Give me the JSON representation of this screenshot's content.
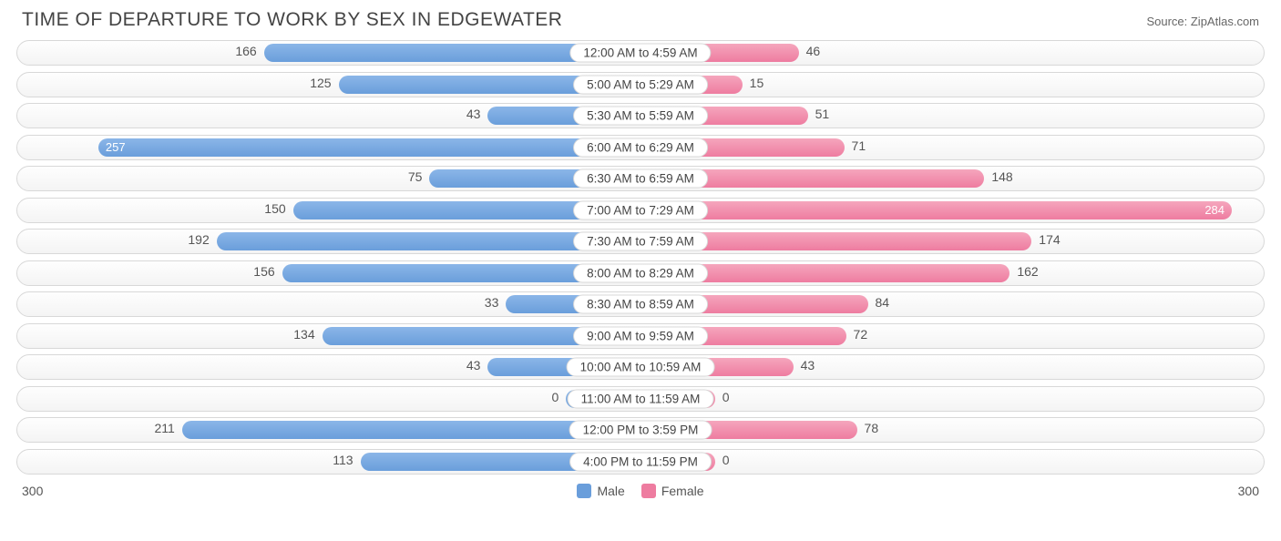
{
  "title": "TIME OF DEPARTURE TO WORK BY SEX IN EDGEWATER",
  "source": "Source: ZipAtlas.com",
  "chart": {
    "type": "diverging-bar",
    "max_value": 300,
    "axis_left_label": "300",
    "axis_right_label": "300",
    "male_color": "#6a9edb",
    "female_color": "#ee7ca0",
    "row_bg": "#f6f6f6",
    "row_border": "#d8d8d8",
    "label_bg": "#ffffff",
    "text_color": "#555555",
    "legend": {
      "male": "Male",
      "female": "Female"
    },
    "categories": [
      {
        "label": "12:00 AM to 4:59 AM",
        "male": 166,
        "female": 46
      },
      {
        "label": "5:00 AM to 5:29 AM",
        "male": 125,
        "female": 15
      },
      {
        "label": "5:30 AM to 5:59 AM",
        "male": 43,
        "female": 51
      },
      {
        "label": "6:00 AM to 6:29 AM",
        "male": 257,
        "female": 71
      },
      {
        "label": "6:30 AM to 6:59 AM",
        "male": 75,
        "female": 148
      },
      {
        "label": "7:00 AM to 7:29 AM",
        "male": 150,
        "female": 284
      },
      {
        "label": "7:30 AM to 7:59 AM",
        "male": 192,
        "female": 174
      },
      {
        "label": "8:00 AM to 8:29 AM",
        "male": 156,
        "female": 162
      },
      {
        "label": "8:30 AM to 8:59 AM",
        "male": 33,
        "female": 84
      },
      {
        "label": "9:00 AM to 9:59 AM",
        "male": 134,
        "female": 72
      },
      {
        "label": "10:00 AM to 10:59 AM",
        "male": 43,
        "female": 43
      },
      {
        "label": "11:00 AM to 11:59 AM",
        "male": 0,
        "female": 0
      },
      {
        "label": "12:00 PM to 3:59 PM",
        "male": 211,
        "female": 78
      },
      {
        "label": "4:00 PM to 11:59 PM",
        "male": 113,
        "female": 0
      }
    ]
  }
}
